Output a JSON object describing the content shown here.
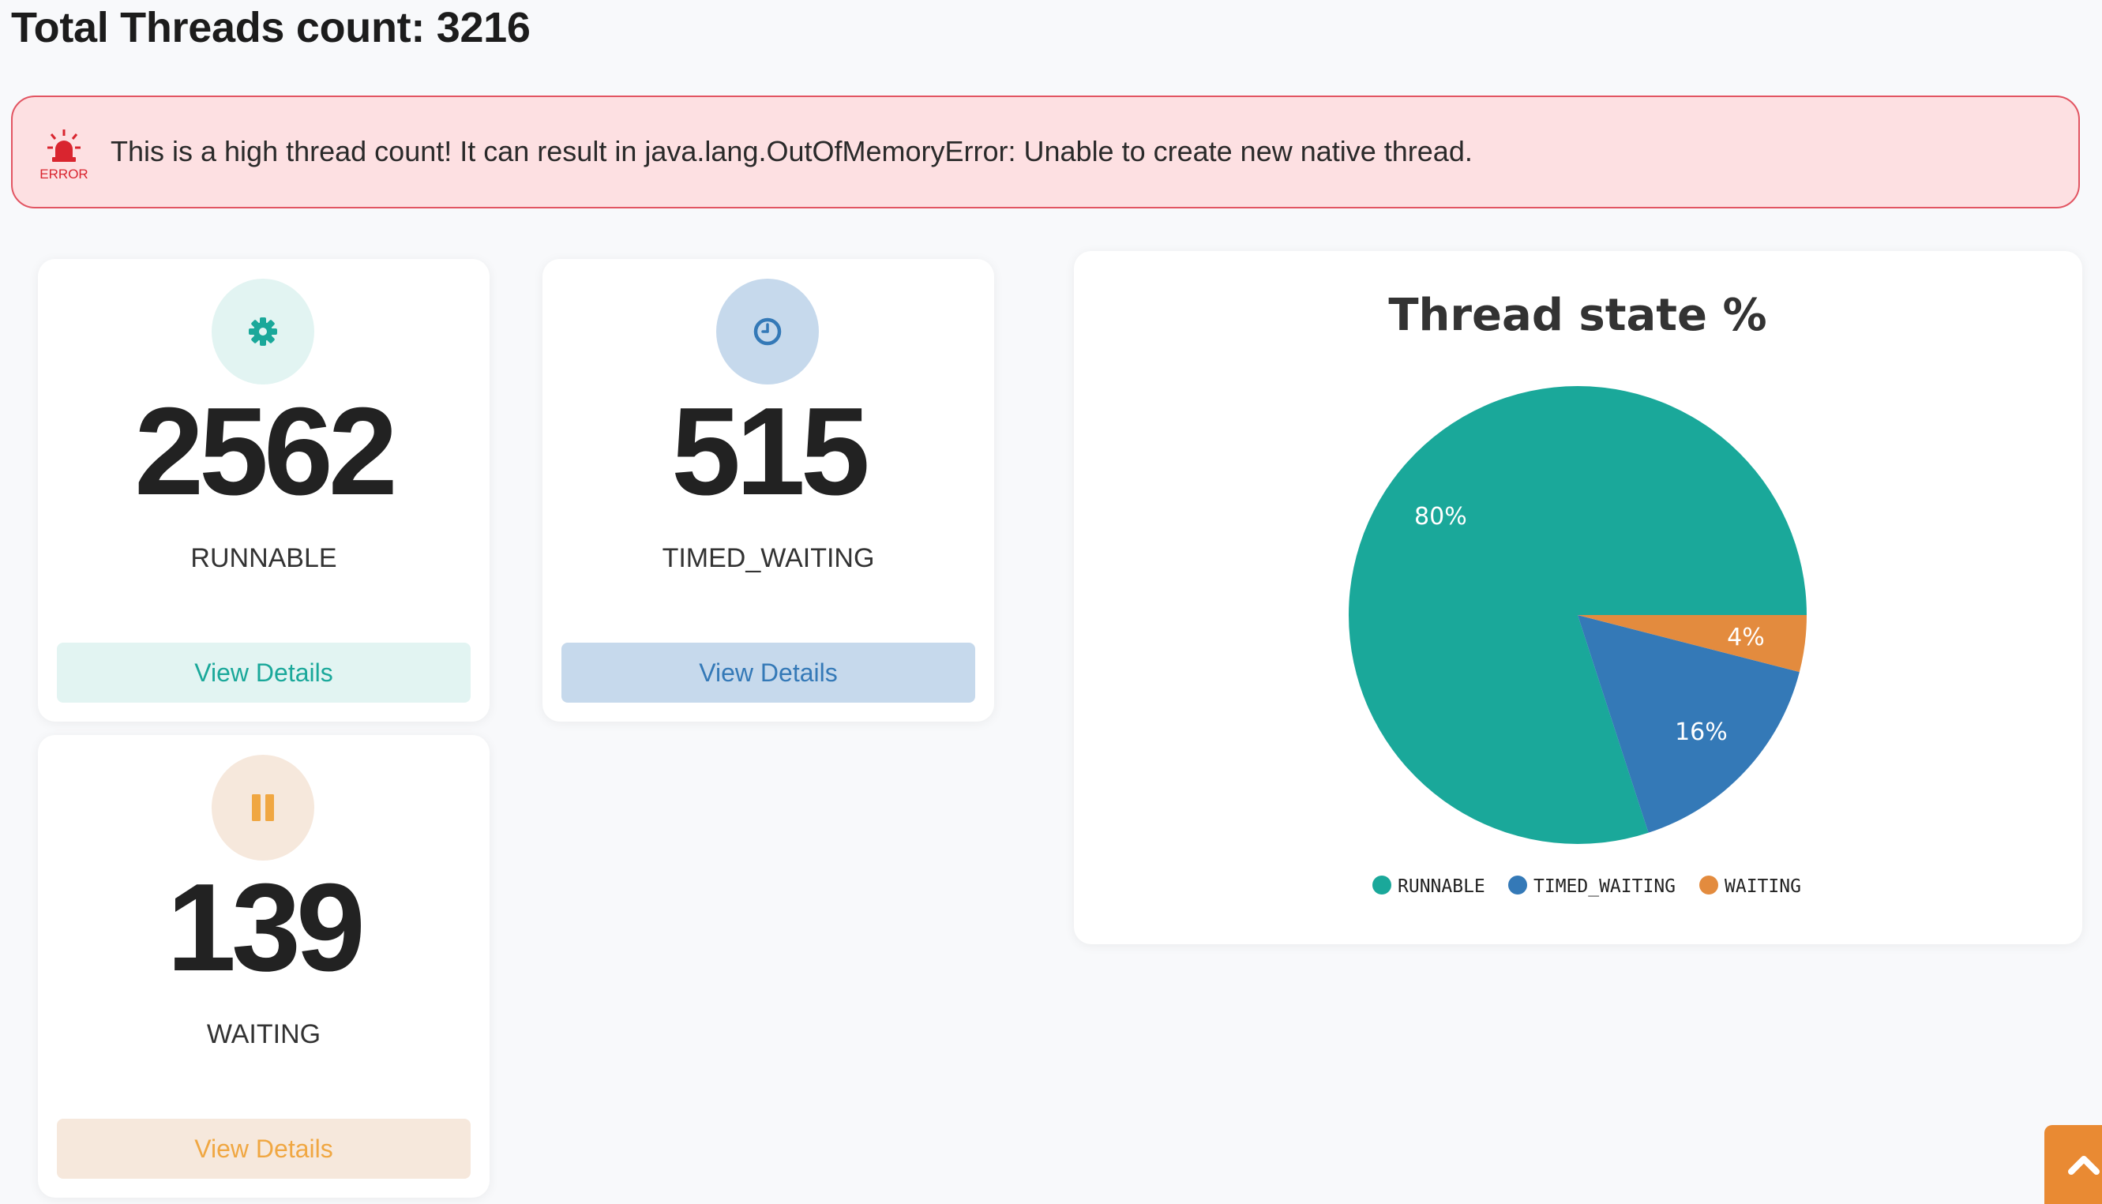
{
  "header": {
    "title": "Total Threads count: 3216"
  },
  "alert": {
    "icon": "siren-icon",
    "icon_label": "ERROR",
    "message": "This is a high thread count! It can result in java.lang.OutOfMemoryError: Unable to create new native thread.",
    "color": "#e25562"
  },
  "cards": {
    "runnable": {
      "icon": "gear-icon",
      "value": "2562",
      "label": "RUNNABLE",
      "button": "View Details",
      "accent": "#1aa89a",
      "accent_bg": "#e2f4f2"
    },
    "timed_waiting": {
      "icon": "clock-icon",
      "value": "515",
      "label": "TIMED_WAITING",
      "button": "View Details",
      "accent": "#3479b7",
      "accent_bg": "#c6d9ec"
    },
    "waiting": {
      "icon": "pause-icon",
      "value": "139",
      "label": "WAITING",
      "button": "View Details",
      "accent": "#f0a742",
      "accent_bg": "#f6e8dc"
    }
  },
  "chart_data": {
    "type": "pie",
    "title": "Thread state %",
    "categories": [
      "RUNNABLE",
      "TIMED_WAITING",
      "WAITING"
    ],
    "values": [
      80,
      16,
      4
    ],
    "labels": [
      "80%",
      "16%",
      "4%"
    ],
    "colors": [
      "#1aa89a",
      "#3479b7",
      "#e38b3e"
    ],
    "legend": "bottom"
  },
  "scroll_top": {
    "icon": "chevron-up-icon"
  }
}
